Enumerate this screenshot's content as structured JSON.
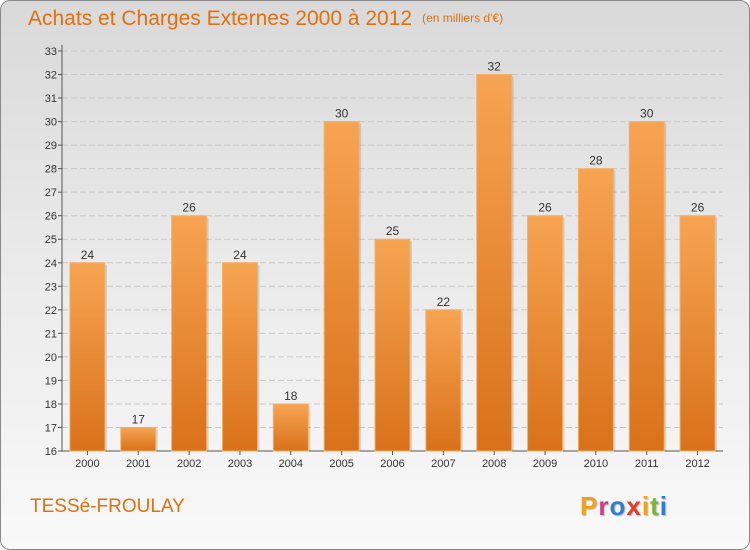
{
  "header": {
    "title": "Achats et Charges Externes 2000 à 2012",
    "unit": "(en milliers d'€)"
  },
  "footer": {
    "commune": "TESSé-FROULAY",
    "logo_text": "Proxiti"
  },
  "colors": {
    "accent": "#e07010",
    "bar_top": "#f7a452",
    "bar_bottom": "#d9711a",
    "logo_letters": [
      "#f0a020",
      "#d23a8c",
      "#2e7fd0",
      "#e53a2a",
      "#f0a020",
      "#7ab82d",
      "#2e7fd0"
    ]
  },
  "chart_data": {
    "type": "bar",
    "categories": [
      "2000",
      "2001",
      "2002",
      "2003",
      "2004",
      "2005",
      "2006",
      "2007",
      "2008",
      "2009",
      "2010",
      "2011",
      "2012"
    ],
    "values": [
      24,
      17,
      26,
      24,
      18,
      30,
      25,
      22,
      32,
      26,
      28,
      30,
      26
    ],
    "data_labels": [
      "24",
      "17",
      "26",
      "24",
      "18",
      "30",
      "25",
      "22",
      "32",
      "26",
      "28",
      "30",
      "26"
    ],
    "y_ticks": [
      "16",
      "17",
      "18",
      "19",
      "20",
      "21",
      "22",
      "23",
      "24",
      "25",
      "26",
      "27",
      "28",
      "29",
      "30",
      "31",
      "32",
      "33"
    ],
    "ylim": [
      16,
      33
    ],
    "grid": true,
    "legend": "none"
  }
}
